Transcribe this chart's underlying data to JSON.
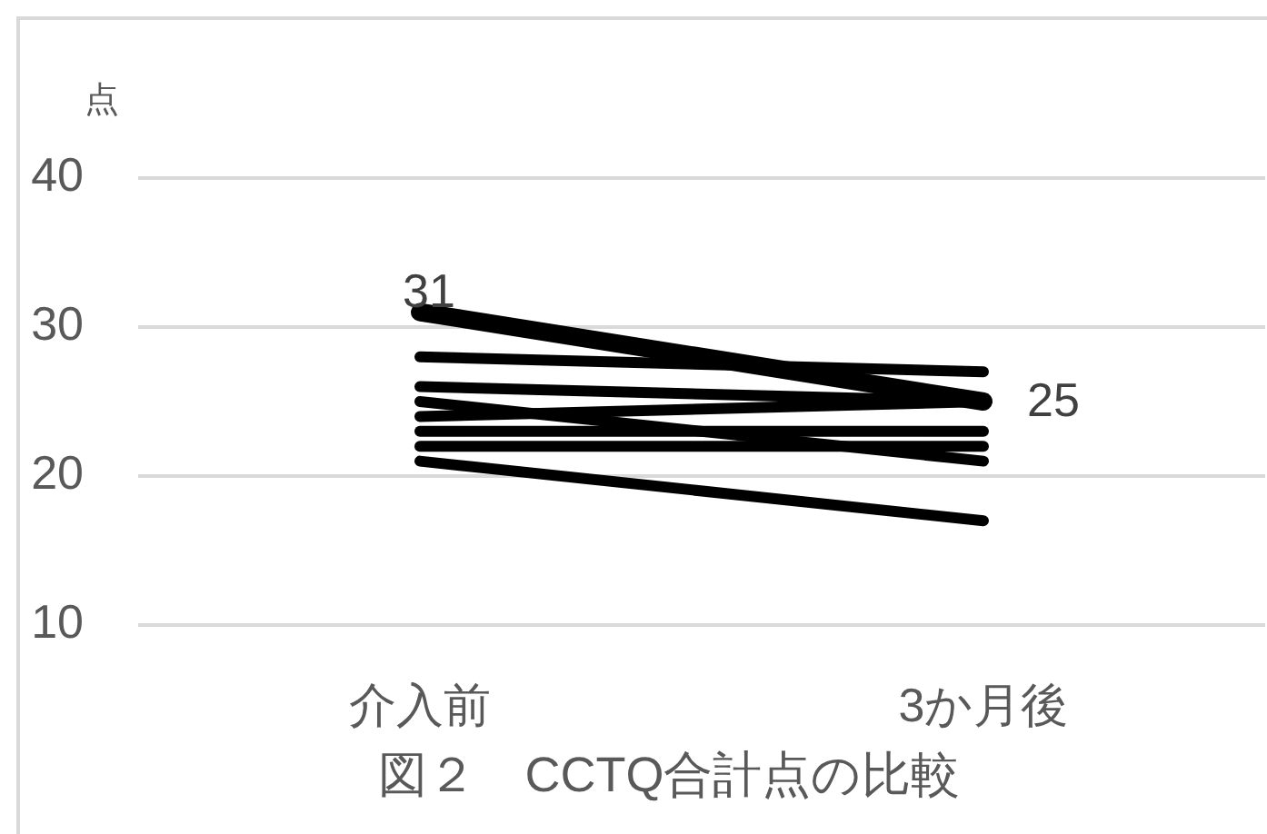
{
  "chart_data": {
    "type": "line",
    "title": "図２　CCTQ合計点の比較",
    "ylabel": "点",
    "categories": [
      "介入前",
      "3か月後"
    ],
    "series": [
      {
        "color": "#000000",
        "values": [
          31,
          25
        ],
        "value_labels": [
          "31",
          "25"
        ]
      },
      {
        "color": "#000000",
        "values": [
          28,
          27
        ]
      },
      {
        "color": "#000000",
        "values": [
          26,
          25
        ]
      },
      {
        "color": "#000000",
        "values": [
          25,
          21
        ]
      },
      {
        "color": "#000000",
        "values": [
          24,
          25
        ]
      },
      {
        "color": "#000000",
        "values": [
          23,
          23
        ]
      },
      {
        "color": "#000000",
        "values": [
          22,
          22
        ]
      },
      {
        "color": "#000000",
        "values": [
          21,
          17
        ]
      }
    ],
    "ylim": [
      10,
      40
    ],
    "yticks": [
      10,
      20,
      30,
      40
    ],
    "grid": "y",
    "legend": false,
    "marker": "none",
    "line_style": "solid"
  }
}
